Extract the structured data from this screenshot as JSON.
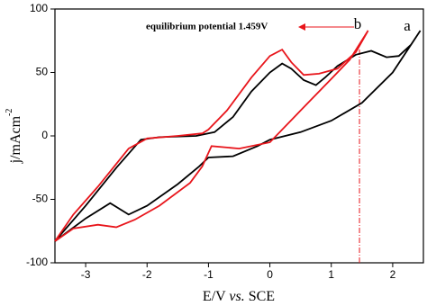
{
  "chart_data": {
    "type": "line",
    "x_label": [
      "E/V",
      "vs.",
      "SCE"
    ],
    "y_label": "j/mAcm",
    "y_label_sup": "-2",
    "annotation": "equilibrium potential 1.459V",
    "vline_x": 1.459,
    "xlim": [
      -3.5,
      2.5
    ],
    "xticks": [
      -3,
      -2,
      -1,
      0,
      1,
      2
    ],
    "ylim": [
      -100,
      100
    ],
    "yticks": [
      -100,
      -50,
      0,
      50,
      100
    ],
    "series": [
      {
        "name": "a",
        "color": "#000000",
        "x": [
          -3.5,
          -3.0,
          -2.6,
          -2.3,
          -2.0,
          -1.5,
          -1.15,
          -1.0,
          -0.6,
          -0.2,
          0.0,
          0.5,
          1.0,
          1.5,
          2.0,
          2.45,
          2.3,
          2.1,
          1.9,
          1.65,
          1.4,
          1.1,
          0.9,
          0.75,
          0.55,
          0.35,
          0.2,
          0.0,
          -0.3,
          -0.6,
          -0.9,
          -1.2,
          -1.8,
          -2.1,
          -2.5,
          -3.0,
          -3.5
        ],
        "values": [
          -83,
          -65,
          -53,
          -62,
          -55,
          -38,
          -24,
          -17,
          -16,
          -8,
          -3,
          3,
          12,
          26,
          50,
          83,
          72,
          63,
          62,
          67,
          64,
          55,
          46,
          40,
          44,
          53,
          57,
          50,
          35,
          15,
          3,
          0,
          -1,
          -3,
          -25,
          -55,
          -83
        ]
      },
      {
        "name": "b",
        "color": "#e8151b",
        "x": [
          -3.5,
          -3.2,
          -2.8,
          -2.5,
          -2.2,
          -1.8,
          -1.3,
          -1.1,
          -0.95,
          -0.5,
          0.0,
          0.5,
          1.0,
          1.3,
          1.6,
          1.4,
          1.1,
          0.8,
          0.55,
          0.35,
          0.2,
          0.0,
          -0.3,
          -0.7,
          -1.0,
          -1.1,
          -1.5,
          -2.0,
          -2.3,
          -2.8,
          -3.2,
          -3.5
        ],
        "values": [
          -83,
          -73,
          -70,
          -72,
          -66,
          -55,
          -37,
          -24,
          -8,
          -10,
          -5,
          20,
          45,
          60,
          83,
          66,
          53,
          49,
          48,
          58,
          68,
          63,
          46,
          20,
          5,
          2,
          0,
          -2,
          -10,
          -40,
          -62,
          -83
        ]
      }
    ]
  }
}
